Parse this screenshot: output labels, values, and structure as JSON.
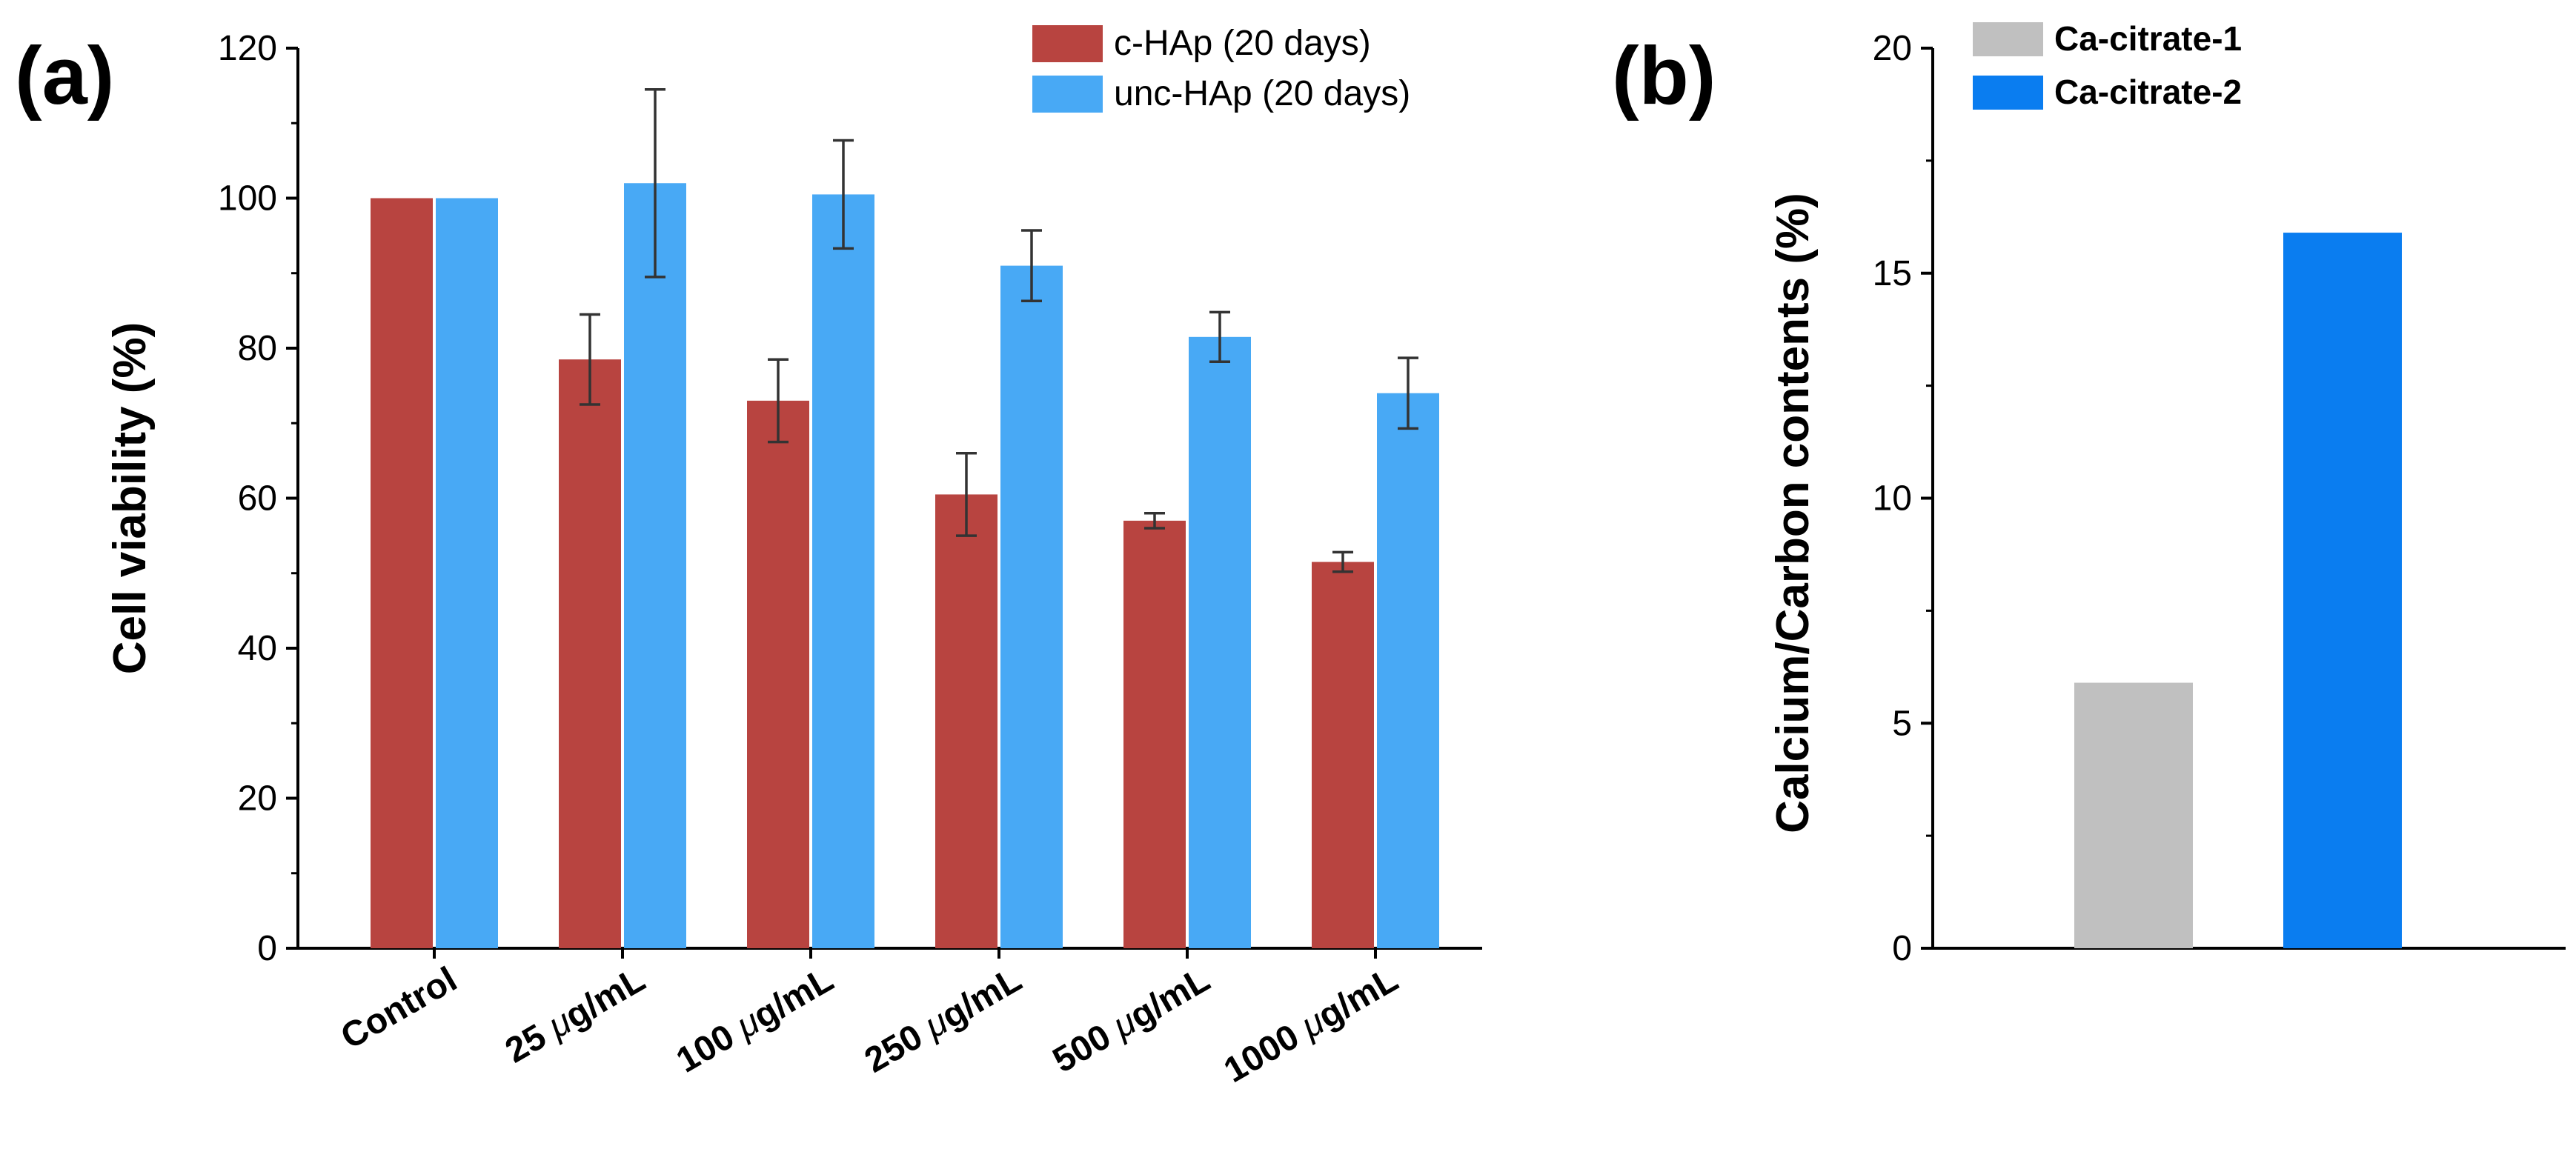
{
  "chart_data": [
    {
      "panel": "(a)",
      "type": "bar",
      "title": "",
      "xlabel": "",
      "ylabel": "Cell viability (%)",
      "ylim": [
        0,
        120
      ],
      "yticks": [
        "0",
        "20",
        "40",
        "60",
        "80",
        "100",
        "120"
      ],
      "categories": [
        {
          "num": "Control",
          "unit": ""
        },
        {
          "num": "25 ",
          "unit": "μg/mL"
        },
        {
          "num": "100 ",
          "unit": "μg/mL"
        },
        {
          "num": "250 ",
          "unit": "μg/mL"
        },
        {
          "num": "500 ",
          "unit": "μg/mL"
        },
        {
          "num": "1000 ",
          "unit": "μg/mL"
        }
      ],
      "series": [
        {
          "name": "c-HAp (20 days)",
          "color": "#B84440",
          "values": [
            100,
            78.5,
            73,
            60.5,
            57,
            51.5
          ],
          "errors": [
            null,
            6,
            5.5,
            5.5,
            1,
            1.3
          ]
        },
        {
          "name": "unc-HAp (20 days)",
          "color": "#48A9F5",
          "values": [
            100,
            102,
            100.5,
            91,
            81.5,
            74
          ],
          "errors": [
            null,
            12.5,
            7.2,
            4.7,
            3.3,
            4.7
          ]
        }
      ],
      "legend_position": "top-right"
    },
    {
      "panel": "(b)",
      "type": "bar",
      "title": "",
      "xlabel": "",
      "ylabel": "Calcium/Carbon contents (%)",
      "ylim": [
        0,
        20
      ],
      "yticks": [
        "0",
        "5",
        "10",
        "15",
        "20"
      ],
      "series": [
        {
          "name": "Ca-citrate-1",
          "color": "#C0C0C0",
          "value": 5.9
        },
        {
          "name": "Ca-citrate-2",
          "color": "#0A7DF0",
          "value": 15.9
        }
      ],
      "legend_position": "top-left"
    }
  ]
}
